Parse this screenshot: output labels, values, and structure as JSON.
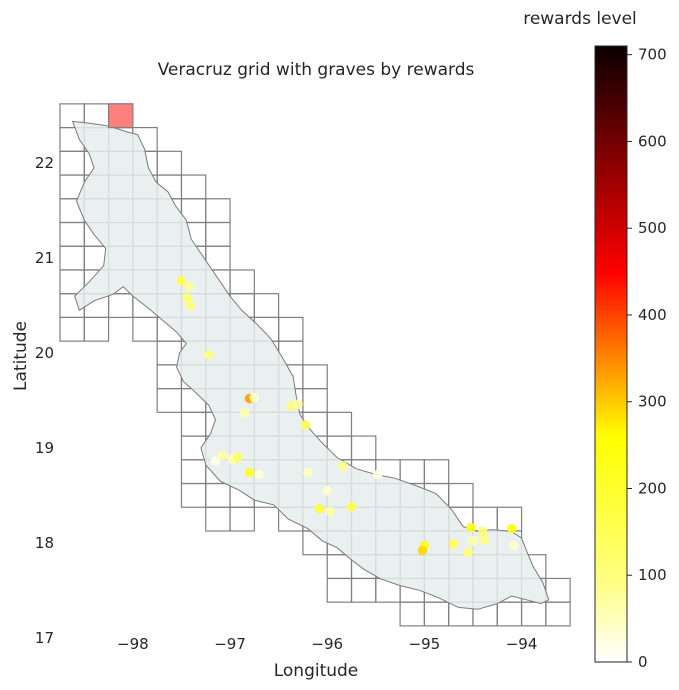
{
  "chart_data": {
    "type": "scatter",
    "title": "Veracruz grid with graves by rewards",
    "xlabel": "Longitude",
    "ylabel": "Latitude",
    "xlim": [
      -98.75,
      -93.45
    ],
    "ylim": [
      16.85,
      22.75
    ],
    "x_ticks": [
      -98,
      -97,
      -96,
      -95,
      -94
    ],
    "y_ticks": [
      17,
      18,
      19,
      20,
      21,
      22
    ],
    "grid": false,
    "colorbar": {
      "title": "rewards level",
      "range": [
        0,
        710
      ],
      "ticks": [
        0,
        100,
        200,
        300,
        400,
        500,
        600,
        700
      ],
      "colormap": "hot_r"
    },
    "colors": {
      "region_fill": "#e6ecec",
      "region_edge": "#7a7a7a",
      "grid_edge": "#808080",
      "highlight_cell": "#ff7f7f"
    },
    "cell_size_deg": 0.25,
    "highlight_cell": {
      "lon": -98.125,
      "lat": 22.5
    },
    "grid_cells": [
      [
        -98.625,
        22.5
      ],
      [
        -98.375,
        22.5
      ],
      [
        -98.125,
        22.5
      ],
      [
        -98.625,
        22.25
      ],
      [
        -98.375,
        22.25
      ],
      [
        -98.125,
        22.25
      ],
      [
        -97.875,
        22.25
      ],
      [
        -98.625,
        22.0
      ],
      [
        -98.375,
        22.0
      ],
      [
        -98.125,
        22.0
      ],
      [
        -97.875,
        22.0
      ],
      [
        -97.625,
        22.0
      ],
      [
        -98.625,
        21.75
      ],
      [
        -98.375,
        21.75
      ],
      [
        -98.125,
        21.75
      ],
      [
        -97.875,
        21.75
      ],
      [
        -97.625,
        21.75
      ],
      [
        -97.375,
        21.75
      ],
      [
        -98.625,
        21.5
      ],
      [
        -98.375,
        21.5
      ],
      [
        -98.125,
        21.5
      ],
      [
        -97.875,
        21.5
      ],
      [
        -97.625,
        21.5
      ],
      [
        -97.375,
        21.5
      ],
      [
        -97.125,
        21.5
      ],
      [
        -98.625,
        21.25
      ],
      [
        -98.375,
        21.25
      ],
      [
        -98.125,
        21.25
      ],
      [
        -97.875,
        21.25
      ],
      [
        -97.625,
        21.25
      ],
      [
        -97.375,
        21.25
      ],
      [
        -97.125,
        21.25
      ],
      [
        -98.625,
        21.0
      ],
      [
        -98.375,
        21.0
      ],
      [
        -98.125,
        21.0
      ],
      [
        -97.875,
        21.0
      ],
      [
        -97.625,
        21.0
      ],
      [
        -97.375,
        21.0
      ],
      [
        -97.125,
        21.0
      ],
      [
        -98.625,
        20.75
      ],
      [
        -98.375,
        20.75
      ],
      [
        -98.125,
        20.75
      ],
      [
        -97.875,
        20.75
      ],
      [
        -97.625,
        20.75
      ],
      [
        -97.375,
        20.75
      ],
      [
        -97.125,
        20.75
      ],
      [
        -96.875,
        20.75
      ],
      [
        -98.625,
        20.5
      ],
      [
        -98.375,
        20.5
      ],
      [
        -98.125,
        20.5
      ],
      [
        -97.875,
        20.5
      ],
      [
        -97.625,
        20.5
      ],
      [
        -97.375,
        20.5
      ],
      [
        -97.125,
        20.5
      ],
      [
        -96.875,
        20.5
      ],
      [
        -96.625,
        20.5
      ],
      [
        -98.625,
        20.25
      ],
      [
        -98.375,
        20.25
      ],
      [
        -97.875,
        20.25
      ],
      [
        -97.625,
        20.25
      ],
      [
        -97.375,
        20.25
      ],
      [
        -97.125,
        20.25
      ],
      [
        -96.875,
        20.25
      ],
      [
        -96.625,
        20.25
      ],
      [
        -96.375,
        20.25
      ],
      [
        -97.625,
        20.0
      ],
      [
        -97.375,
        20.0
      ],
      [
        -97.125,
        20.0
      ],
      [
        -96.875,
        20.0
      ],
      [
        -96.625,
        20.0
      ],
      [
        -96.375,
        20.0
      ],
      [
        -97.625,
        19.75
      ],
      [
        -97.375,
        19.75
      ],
      [
        -97.125,
        19.75
      ],
      [
        -96.875,
        19.75
      ],
      [
        -96.625,
        19.75
      ],
      [
        -96.375,
        19.75
      ],
      [
        -96.125,
        19.75
      ],
      [
        -97.625,
        19.5
      ],
      [
        -97.375,
        19.5
      ],
      [
        -97.125,
        19.5
      ],
      [
        -96.875,
        19.5
      ],
      [
        -96.625,
        19.5
      ],
      [
        -96.375,
        19.5
      ],
      [
        -96.125,
        19.5
      ],
      [
        -97.375,
        19.25
      ],
      [
        -97.125,
        19.25
      ],
      [
        -96.875,
        19.25
      ],
      [
        -96.625,
        19.25
      ],
      [
        -96.375,
        19.25
      ],
      [
        -96.125,
        19.25
      ],
      [
        -95.875,
        19.25
      ],
      [
        -97.375,
        19.0
      ],
      [
        -97.125,
        19.0
      ],
      [
        -96.875,
        19.0
      ],
      [
        -96.625,
        19.0
      ],
      [
        -96.375,
        19.0
      ],
      [
        -96.125,
        19.0
      ],
      [
        -95.875,
        19.0
      ],
      [
        -95.625,
        19.0
      ],
      [
        -97.375,
        18.75
      ],
      [
        -97.125,
        18.75
      ],
      [
        -96.875,
        18.75
      ],
      [
        -96.625,
        18.75
      ],
      [
        -96.375,
        18.75
      ],
      [
        -96.125,
        18.75
      ],
      [
        -95.875,
        18.75
      ],
      [
        -95.625,
        18.75
      ],
      [
        -95.375,
        18.75
      ],
      [
        -95.125,
        18.75
      ],
      [
        -94.875,
        18.75
      ],
      [
        -97.375,
        18.5
      ],
      [
        -97.125,
        18.5
      ],
      [
        -96.875,
        18.5
      ],
      [
        -96.625,
        18.5
      ],
      [
        -96.375,
        18.5
      ],
      [
        -96.125,
        18.5
      ],
      [
        -95.875,
        18.5
      ],
      [
        -95.625,
        18.5
      ],
      [
        -95.375,
        18.5
      ],
      [
        -95.125,
        18.5
      ],
      [
        -94.875,
        18.5
      ],
      [
        -94.625,
        18.5
      ],
      [
        -97.125,
        18.25
      ],
      [
        -96.875,
        18.25
      ],
      [
        -96.375,
        18.25
      ],
      [
        -96.125,
        18.25
      ],
      [
        -95.875,
        18.25
      ],
      [
        -95.625,
        18.25
      ],
      [
        -95.375,
        18.25
      ],
      [
        -95.125,
        18.25
      ],
      [
        -94.875,
        18.25
      ],
      [
        -94.625,
        18.25
      ],
      [
        -94.375,
        18.25
      ],
      [
        -94.125,
        18.25
      ],
      [
        -96.125,
        18.0
      ],
      [
        -95.875,
        18.0
      ],
      [
        -95.625,
        18.0
      ],
      [
        -95.375,
        18.0
      ],
      [
        -95.125,
        18.0
      ],
      [
        -94.875,
        18.0
      ],
      [
        -94.625,
        18.0
      ],
      [
        -94.375,
        18.0
      ],
      [
        -94.125,
        18.0
      ],
      [
        -95.875,
        17.75
      ],
      [
        -95.625,
        17.75
      ],
      [
        -95.375,
        17.75
      ],
      [
        -95.125,
        17.75
      ],
      [
        -94.875,
        17.75
      ],
      [
        -94.625,
        17.75
      ],
      [
        -94.375,
        17.75
      ],
      [
        -94.125,
        17.75
      ],
      [
        -93.875,
        17.75
      ],
      [
        -95.875,
        17.5
      ],
      [
        -95.625,
        17.5
      ],
      [
        -95.375,
        17.5
      ],
      [
        -95.125,
        17.5
      ],
      [
        -94.875,
        17.5
      ],
      [
        -94.625,
        17.5
      ],
      [
        -94.375,
        17.5
      ],
      [
        -94.125,
        17.5
      ],
      [
        -93.875,
        17.5
      ],
      [
        -93.625,
        17.5
      ],
      [
        -95.125,
        17.25
      ],
      [
        -94.875,
        17.25
      ],
      [
        -94.625,
        17.25
      ],
      [
        -94.375,
        17.25
      ],
      [
        -94.125,
        17.25
      ],
      [
        -93.875,
        17.25
      ],
      [
        -93.625,
        17.25
      ]
    ],
    "region_outline": [
      [
        -98.62,
        22.44
      ],
      [
        -98.45,
        22.42
      ],
      [
        -98.3,
        22.4
      ],
      [
        -98.18,
        22.37
      ],
      [
        -98.06,
        22.33
      ],
      [
        -97.95,
        22.3
      ],
      [
        -97.88,
        22.15
      ],
      [
        -97.84,
        21.95
      ],
      [
        -97.76,
        21.8
      ],
      [
        -97.64,
        21.7
      ],
      [
        -97.56,
        21.55
      ],
      [
        -97.45,
        21.4
      ],
      [
        -97.4,
        21.2
      ],
      [
        -97.3,
        21.05
      ],
      [
        -97.2,
        20.9
      ],
      [
        -97.1,
        20.75
      ],
      [
        -97.0,
        20.6
      ],
      [
        -96.88,
        20.45
      ],
      [
        -96.72,
        20.3
      ],
      [
        -96.58,
        20.15
      ],
      [
        -96.46,
        19.95
      ],
      [
        -96.35,
        19.75
      ],
      [
        -96.32,
        19.55
      ],
      [
        -96.28,
        19.35
      ],
      [
        -96.18,
        19.2
      ],
      [
        -96.05,
        19.05
      ],
      [
        -95.9,
        18.9
      ],
      [
        -95.7,
        18.78
      ],
      [
        -95.5,
        18.72
      ],
      [
        -95.3,
        18.68
      ],
      [
        -95.08,
        18.6
      ],
      [
        -94.88,
        18.52
      ],
      [
        -94.72,
        18.35
      ],
      [
        -94.6,
        18.17
      ],
      [
        -94.45,
        18.12
      ],
      [
        -94.3,
        18.14
      ],
      [
        -94.1,
        18.12
      ],
      [
        -94.0,
        18.05
      ],
      [
        -93.95,
        17.92
      ],
      [
        -93.88,
        17.75
      ],
      [
        -93.78,
        17.58
      ],
      [
        -93.72,
        17.4
      ],
      [
        -93.8,
        17.36
      ],
      [
        -93.95,
        17.4
      ],
      [
        -94.1,
        17.44
      ],
      [
        -94.25,
        17.36
      ],
      [
        -94.45,
        17.3
      ],
      [
        -94.65,
        17.32
      ],
      [
        -94.85,
        17.42
      ],
      [
        -95.05,
        17.5
      ],
      [
        -95.25,
        17.55
      ],
      [
        -95.45,
        17.62
      ],
      [
        -95.62,
        17.72
      ],
      [
        -95.75,
        17.82
      ],
      [
        -95.9,
        17.95
      ],
      [
        -96.05,
        18.02
      ],
      [
        -96.2,
        18.15
      ],
      [
        -96.4,
        18.25
      ],
      [
        -96.55,
        18.4
      ],
      [
        -96.75,
        18.45
      ],
      [
        -96.9,
        18.55
      ],
      [
        -97.1,
        18.65
      ],
      [
        -97.25,
        18.82
      ],
      [
        -97.3,
        19.0
      ],
      [
        -97.2,
        19.15
      ],
      [
        -97.15,
        19.3
      ],
      [
        -97.22,
        19.45
      ],
      [
        -97.35,
        19.58
      ],
      [
        -97.48,
        19.7
      ],
      [
        -97.55,
        19.85
      ],
      [
        -97.52,
        20.0
      ],
      [
        -97.45,
        20.1
      ],
      [
        -97.55,
        20.22
      ],
      [
        -97.7,
        20.35
      ],
      [
        -97.85,
        20.48
      ],
      [
        -98.0,
        20.6
      ],
      [
        -98.1,
        20.7
      ],
      [
        -98.2,
        20.62
      ],
      [
        -98.4,
        20.55
      ],
      [
        -98.55,
        20.45
      ],
      [
        -98.6,
        20.6
      ],
      [
        -98.45,
        20.75
      ],
      [
        -98.3,
        20.92
      ],
      [
        -98.28,
        21.1
      ],
      [
        -98.4,
        21.25
      ],
      [
        -98.5,
        21.4
      ],
      [
        -98.58,
        21.6
      ],
      [
        -98.5,
        21.8
      ],
      [
        -98.4,
        21.95
      ],
      [
        -98.45,
        22.1
      ],
      [
        -98.55,
        22.25
      ],
      [
        -98.62,
        22.44
      ]
    ],
    "points": [
      {
        "x": -97.5,
        "y": 20.76,
        "value": 170
      },
      {
        "x": -97.42,
        "y": 20.7,
        "value": 80
      },
      {
        "x": -97.44,
        "y": 20.58,
        "value": 120
      },
      {
        "x": -97.41,
        "y": 20.5,
        "value": 110
      },
      {
        "x": -97.22,
        "y": 19.98,
        "value": 100
      },
      {
        "x": -96.8,
        "y": 19.52,
        "value": 330
      },
      {
        "x": -96.75,
        "y": 19.53,
        "value": 40
      },
      {
        "x": -96.85,
        "y": 19.37,
        "value": 60
      },
      {
        "x": -96.37,
        "y": 19.44,
        "value": 120
      },
      {
        "x": -96.3,
        "y": 19.46,
        "value": 70
      },
      {
        "x": -96.22,
        "y": 19.24,
        "value": 160
      },
      {
        "x": -97.08,
        "y": 18.92,
        "value": 70
      },
      {
        "x": -96.98,
        "y": 18.88,
        "value": 60
      },
      {
        "x": -96.92,
        "y": 18.9,
        "value": 140
      },
      {
        "x": -97.15,
        "y": 18.86,
        "value": 20
      },
      {
        "x": -96.8,
        "y": 18.74,
        "value": 210
      },
      {
        "x": -96.7,
        "y": 18.72,
        "value": 30
      },
      {
        "x": -96.2,
        "y": 18.74,
        "value": 50
      },
      {
        "x": -95.84,
        "y": 18.81,
        "value": 90
      },
      {
        "x": -95.48,
        "y": 18.72,
        "value": 20
      },
      {
        "x": -96.0,
        "y": 18.55,
        "value": 40
      },
      {
        "x": -96.08,
        "y": 18.36,
        "value": 180
      },
      {
        "x": -95.97,
        "y": 18.33,
        "value": 70
      },
      {
        "x": -95.75,
        "y": 18.38,
        "value": 160
      },
      {
        "x": -95.0,
        "y": 17.97,
        "value": 230
      },
      {
        "x": -95.02,
        "y": 17.92,
        "value": 290
      },
      {
        "x": -94.7,
        "y": 17.99,
        "value": 150
      },
      {
        "x": -94.55,
        "y": 17.9,
        "value": 110
      },
      {
        "x": -94.5,
        "y": 18.02,
        "value": 70
      },
      {
        "x": -94.52,
        "y": 18.16,
        "value": 230
      },
      {
        "x": -94.4,
        "y": 18.12,
        "value": 120
      },
      {
        "x": -94.38,
        "y": 18.03,
        "value": 100
      },
      {
        "x": -94.1,
        "y": 18.15,
        "value": 230
      },
      {
        "x": -94.08,
        "y": 17.97,
        "value": 40
      }
    ]
  }
}
